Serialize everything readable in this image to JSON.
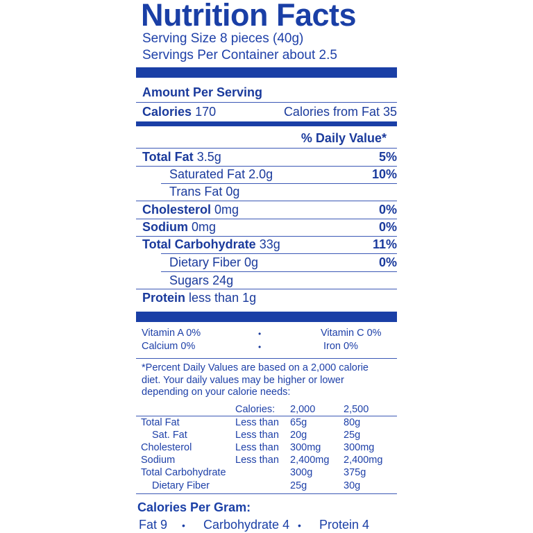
{
  "label": {
    "title": "Nutrition Facts",
    "serving_size": "Serving Size 8 pieces (40g)",
    "servings_per_container": "Servings Per Container about 2.5",
    "amount_per_serving": "Amount Per Serving",
    "calories_label": "Calories",
    "calories_value": "170",
    "calories_from_fat": "Calories from Fat 35",
    "daily_value_header": "% Daily Value*"
  },
  "nutrients": [
    {
      "name": "Total Fat",
      "amount": "3.5g",
      "dv": "5%"
    },
    {
      "name": "Saturated Fat",
      "amount": "2.0g",
      "dv": "10%"
    },
    {
      "name": "Trans Fat",
      "amount": "0g",
      "dv": ""
    },
    {
      "name": "Cholesterol",
      "amount": "0mg",
      "dv": "0%"
    },
    {
      "name": "Sodium",
      "amount": "0mg",
      "dv": "0%"
    },
    {
      "name": "Total Carbohydrate",
      "amount": "33g",
      "dv": "11%"
    },
    {
      "name": "Dietary Fiber",
      "amount": "0g",
      "dv": "0%"
    },
    {
      "name": "Sugars",
      "amount": "24g",
      "dv": ""
    },
    {
      "name": "Protein",
      "amount": "less than 1g",
      "dv": ""
    }
  ],
  "vitamins": {
    "vitamin_a": "Vitamin A 0%",
    "vitamin_c": "Vitamin C 0%",
    "calcium": "Calcium 0%",
    "iron": "Iron 0%",
    "separator": "•"
  },
  "footnote": {
    "line1": "*Percent Daily Values are based on a 2,000 calorie",
    "line2": "diet. Your daily values may be higher or lower",
    "line3": "depending on your calorie needs:"
  },
  "dv_table": {
    "header": {
      "label": "Calories:",
      "col1": "2,000",
      "col2": "2,500"
    },
    "rows": [
      {
        "name": "Total Fat",
        "qual": "Less than",
        "col1": "65g",
        "col2": "80g"
      },
      {
        "name": "Sat. Fat",
        "qual": "Less than",
        "col1": "20g",
        "col2": "25g"
      },
      {
        "name": "Cholesterol",
        "qual": "Less than",
        "col1": "300mg",
        "col2": "300mg"
      },
      {
        "name": "Sodium",
        "qual": "Less than",
        "col1": "2,400mg",
        "col2": "2,400mg"
      },
      {
        "name": "Total Carbohydrate",
        "qual": "",
        "col1": "300g",
        "col2": "375g"
      },
      {
        "name": "Dietary Fiber",
        "qual": "",
        "col1": "25g",
        "col2": "30g"
      }
    ]
  },
  "calories_per_gram": {
    "title": "Calories Per Gram:",
    "fat": "Fat 9",
    "carbohydrate": "Carbohydrate 4",
    "protein": "Protein 4",
    "separator": "•"
  },
  "colors": {
    "ink": "#1a3fa6"
  }
}
